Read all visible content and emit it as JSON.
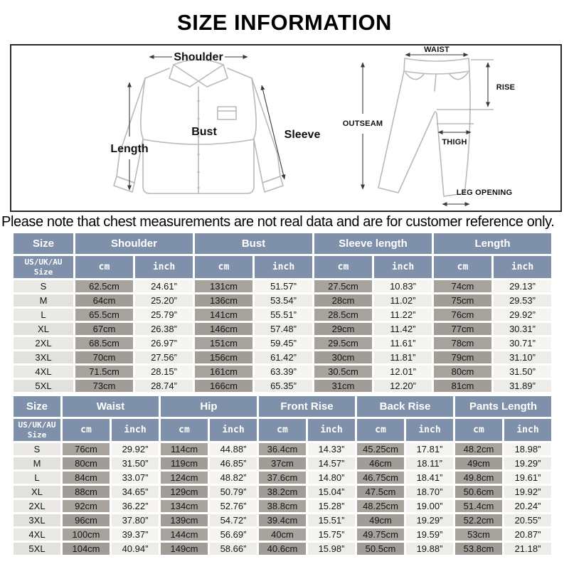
{
  "title": "SIZE INFORMATION",
  "note": "Please note that chest measurements are not real data and are for customer reference only.",
  "diagram": {
    "shirt": {
      "shoulder": "Shoulder",
      "length": "Length",
      "bust": "Bust",
      "sleeve": "Sleeve"
    },
    "pants": {
      "waist": "WAIST",
      "rise": "RISE",
      "outseam": "OUTSEAM",
      "thigh": "THIGH",
      "leg_opening": "LEG OPENING"
    }
  },
  "table_common": {
    "size_label": "Size",
    "sub_size_label": "US/UK/AU\nSize",
    "unit_cm": "cm",
    "unit_inch": "inch"
  },
  "colors": {
    "header_bg": "#7e90aa",
    "cm_bg": "#a9a39d",
    "inch_bg": "#f6f4f1",
    "size_bg": "#ebe9e6"
  },
  "tables": [
    {
      "name": "tops",
      "groups": [
        "Shoulder",
        "Bust",
        "Sleeve length",
        "Length"
      ],
      "rows": [
        {
          "size": "S",
          "values": [
            "62.5cm",
            "24.61”",
            "131cm",
            "51.57”",
            "27.5cm",
            "10.83”",
            "74cm",
            "29.13”"
          ]
        },
        {
          "size": "M",
          "values": [
            "64cm",
            "25.20”",
            "136cm",
            "53.54”",
            "28cm",
            "11.02”",
            "75cm",
            "29.53”"
          ]
        },
        {
          "size": "L",
          "values": [
            "65.5cm",
            "25.79”",
            "141cm",
            "55.51”",
            "28.5cm",
            "11.22”",
            "76cm",
            "29.92”"
          ]
        },
        {
          "size": "XL",
          "values": [
            "67cm",
            "26.38”",
            "146cm",
            "57.48”",
            "29cm",
            "11.42”",
            "77cm",
            "30.31”"
          ]
        },
        {
          "size": "2XL",
          "values": [
            "68.5cm",
            "26.97”",
            "151cm",
            "59.45”",
            "29.5cm",
            "11.61”",
            "78cm",
            "30.71”"
          ]
        },
        {
          "size": "3XL",
          "values": [
            "70cm",
            "27.56”",
            "156cm",
            "61.42”",
            "30cm",
            "11.81”",
            "79cm",
            "31.10”"
          ]
        },
        {
          "size": "4XL",
          "values": [
            "71.5cm",
            "28.15”",
            "161cm",
            "63.39”",
            "30.5cm",
            "12.01”",
            "80cm",
            "31.50”"
          ]
        },
        {
          "size": "5XL",
          "values": [
            "73cm",
            "28.74”",
            "166cm",
            "65.35”",
            "31cm",
            "12.20”",
            "81cm",
            "31.89”"
          ]
        }
      ]
    },
    {
      "name": "bottoms",
      "groups": [
        "Waist",
        "Hip",
        "Front Rise",
        "Back Rise",
        "Pants Length"
      ],
      "rows": [
        {
          "size": "S",
          "values": [
            "76cm",
            "29.92”",
            "114cm",
            "44.88”",
            "36.4cm",
            "14.33”",
            "45.25cm",
            "17.81”",
            "48.2cm",
            "18.98”"
          ]
        },
        {
          "size": "M",
          "values": [
            "80cm",
            "31.50”",
            "119cm",
            "46.85”",
            "37cm",
            "14.57”",
            "46cm",
            "18.11”",
            "49cm",
            "19.29”"
          ]
        },
        {
          "size": "L",
          "values": [
            "84cm",
            "33.07”",
            "124cm",
            "48.82”",
            "37.6cm",
            "14.80”",
            "46.75cm",
            "18.41”",
            "49.8cm",
            "19.61”"
          ]
        },
        {
          "size": "XL",
          "values": [
            "88cm",
            "34.65”",
            "129cm",
            "50.79”",
            "38.2cm",
            "15.04”",
            "47.5cm",
            "18.70”",
            "50.6cm",
            "19.92”"
          ]
        },
        {
          "size": "2XL",
          "values": [
            "92cm",
            "36.22”",
            "134cm",
            "52.76”",
            "38.8cm",
            "15.28”",
            "48.25cm",
            "19.00”",
            "51.4cm",
            "20.24”"
          ]
        },
        {
          "size": "3XL",
          "values": [
            "96cm",
            "37.80”",
            "139cm",
            "54.72”",
            "39.4cm",
            "15.51”",
            "49cm",
            "19.29”",
            "52.2cm",
            "20.55”"
          ]
        },
        {
          "size": "4XL",
          "values": [
            "100cm",
            "39.37”",
            "144cm",
            "56.69”",
            "40cm",
            "15.75”",
            "49.75cm",
            "19.59”",
            "53cm",
            "20.87”"
          ]
        },
        {
          "size": "5XL",
          "values": [
            "104cm",
            "40.94”",
            "149cm",
            "58.66”",
            "40.6cm",
            "15.98”",
            "50.5cm",
            "19.88”",
            "53.8cm",
            "21.18”"
          ]
        }
      ]
    }
  ]
}
